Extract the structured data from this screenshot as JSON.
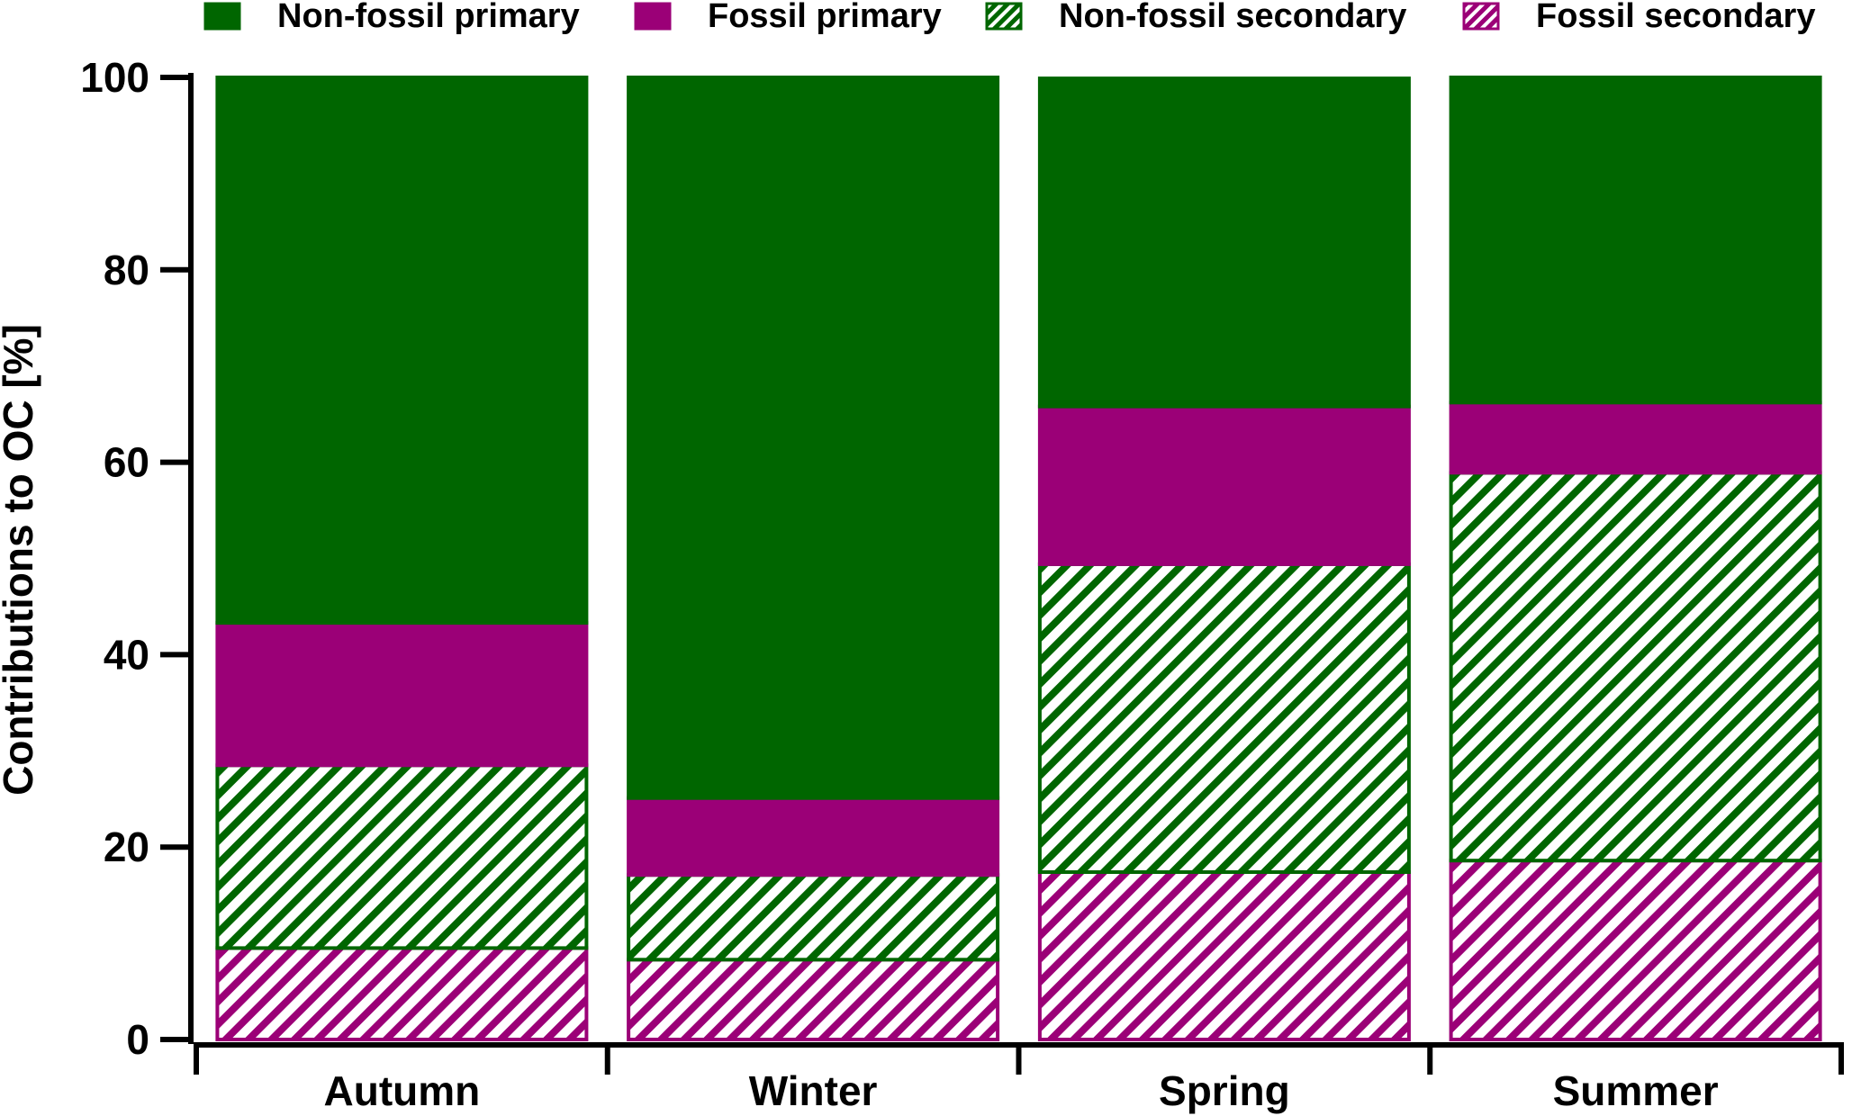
{
  "chart_data": {
    "type": "bar",
    "stacked": true,
    "title": "",
    "xlabel": "",
    "ylabel": "Contributions to OC [%]",
    "ylim": [
      0,
      100
    ],
    "yticks": [
      0,
      20,
      40,
      60,
      80,
      100
    ],
    "grid": false,
    "legend_position": "top",
    "categories": [
      "Autumn",
      "Winter",
      "Spring",
      "Summer"
    ],
    "series": [
      {
        "name": "Fossil secondary",
        "values": [
          9.5,
          8.3,
          17.4,
          18.6
        ],
        "color": "#9b0077",
        "pattern": "hatched"
      },
      {
        "name": "Non-fossil secondary",
        "values": [
          19.0,
          8.8,
          32.0,
          40.3
        ],
        "color": "#006600",
        "pattern": "hatched"
      },
      {
        "name": "Fossil primary",
        "values": [
          14.8,
          8.0,
          16.4,
          7.3
        ],
        "color": "#9b0077",
        "pattern": "solid"
      },
      {
        "name": "Non-fossil primary",
        "values": [
          56.7,
          74.9,
          34.1,
          33.8
        ],
        "color": "#006600",
        "pattern": "solid"
      }
    ],
    "legend": [
      {
        "name": "Non-fossil primary",
        "color": "#006600",
        "pattern": "solid"
      },
      {
        "name": "Fossil primary",
        "color": "#9b0077",
        "pattern": "solid"
      },
      {
        "name": "Non-fossil secondary",
        "color": "#006600",
        "pattern": "hatched"
      },
      {
        "name": "Fossil secondary",
        "color": "#9b0077",
        "pattern": "hatched"
      }
    ]
  }
}
